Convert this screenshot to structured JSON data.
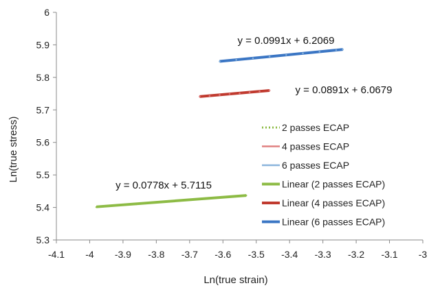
{
  "chart_data": {
    "type": "scatter",
    "xlabel": "Ln(true strain)",
    "ylabel": "Ln(true stress)",
    "xlim": [
      -4.1,
      -3.0
    ],
    "ylim": [
      5.3,
      6.0
    ],
    "x_ticks": [
      -4.1,
      -4,
      -3.9,
      -3.8,
      -3.7,
      -3.6,
      -3.5,
      -3.4,
      -3.3,
      -3.2,
      -3.1,
      -3
    ],
    "y_ticks": [
      5.3,
      5.4,
      5.5,
      5.6,
      5.7,
      5.8,
      5.9,
      6
    ],
    "x_tick_labels": [
      "-4.1",
      "-4",
      "-3.9",
      "-3.8",
      "-3.7",
      "-3.6",
      "-3.5",
      "-3.4",
      "-3.3",
      "-3.2",
      "-3.1",
      "-3"
    ],
    "y_tick_labels": [
      "5.3",
      "5.4",
      "5.5",
      "5.6",
      "5.7",
      "5.8",
      "5.9",
      "6"
    ],
    "grid": false,
    "legend_position": "right",
    "series": [
      {
        "name": "2 passes ECAP",
        "kind": "points",
        "color": "#8dbb45",
        "x": [
          -3.98,
          -3.95,
          -3.92,
          -3.89,
          -3.86,
          -3.83,
          -3.8,
          -3.77,
          -3.74,
          -3.71,
          -3.68,
          -3.65,
          -3.62,
          -3.59,
          -3.56,
          -3.53
        ],
        "y": [
          5.401,
          5.403,
          5.406,
          5.408,
          5.41,
          5.413,
          5.415,
          5.417,
          5.42,
          5.422,
          5.425,
          5.427,
          5.43,
          5.432,
          5.434,
          5.437
        ]
      },
      {
        "name": "4 passes ECAP",
        "kind": "points",
        "color": "#e08080",
        "x": [
          -3.67,
          -3.64,
          -3.61,
          -3.58,
          -3.55,
          -3.52,
          -3.49,
          -3.46
        ],
        "y": [
          5.741,
          5.743,
          5.746,
          5.749,
          5.751,
          5.754,
          5.757,
          5.76
        ]
      },
      {
        "name": "6 passes ECAP",
        "kind": "points",
        "color": "#8ab4dc",
        "x": [
          -3.61,
          -3.56,
          -3.51,
          -3.46,
          -3.41,
          -3.36,
          -3.31,
          -3.26,
          -3.24
        ],
        "y": [
          5.849,
          5.854,
          5.859,
          5.864,
          5.869,
          5.874,
          5.879,
          5.884,
          5.886
        ]
      },
      {
        "name": "Linear (2 passes ECAP)",
        "kind": "trendline",
        "color": "#8dbb45",
        "slope": 0.0778,
        "intercept": 5.7115,
        "x_range": [
          -3.98,
          -3.53
        ]
      },
      {
        "name": "Linear (4 passes ECAP)",
        "kind": "trendline",
        "color": "#c03a2f",
        "slope": 0.0891,
        "intercept": 6.0679,
        "x_range": [
          -3.67,
          -3.46
        ]
      },
      {
        "name": "Linear (6 passes ECAP)",
        "kind": "trendline",
        "color": "#3b76c4",
        "slope": 0.0991,
        "intercept": 6.2069,
        "x_range": [
          -3.61,
          -3.24
        ]
      }
    ],
    "annotations": [
      {
        "text": "y = 0.0991x + 6.2069"
      },
      {
        "text": "y = 0.0891x + 6.0679"
      },
      {
        "text": "y = 0.0778x + 5.7115"
      }
    ]
  }
}
